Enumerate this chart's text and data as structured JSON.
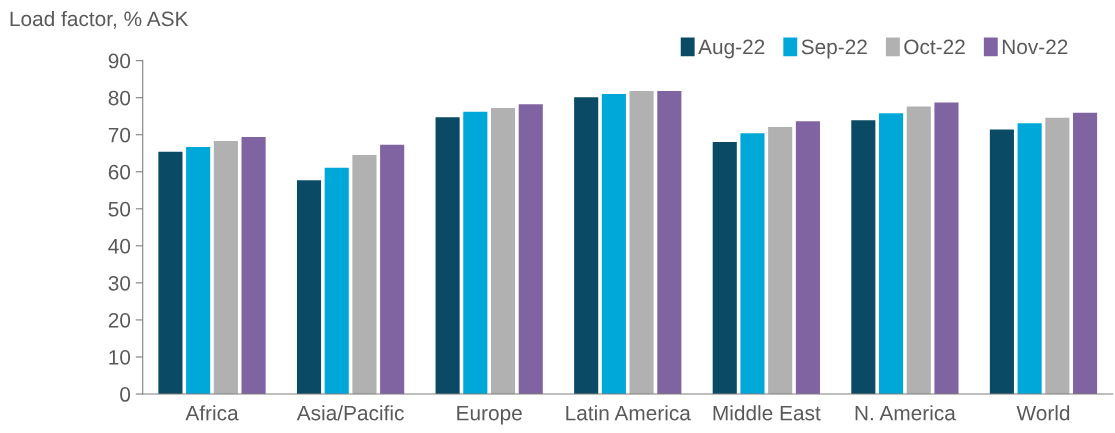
{
  "chart_data": {
    "type": "bar",
    "ylabel": "Load factor, % ASK",
    "categories": [
      "Africa",
      "Asia/Pacific",
      "Europe",
      "Latin America",
      "Middle East",
      "N. America",
      "World"
    ],
    "series": [
      {
        "name": "Aug-22",
        "color": "#0a4a64",
        "values": [
          65.4,
          57.7,
          74.7,
          80.1,
          68.0,
          73.9,
          71.4
        ]
      },
      {
        "name": "Sep-22",
        "color": "#00a7d9",
        "values": [
          66.7,
          61.1,
          76.2,
          81.0,
          70.4,
          75.8,
          73.1
        ]
      },
      {
        "name": "Oct-22",
        "color": "#b1b1b1",
        "values": [
          68.3,
          64.5,
          77.2,
          81.8,
          72.1,
          77.6,
          74.6
        ]
      },
      {
        "name": "Nov-22",
        "color": "#8064a2",
        "values": [
          69.4,
          67.3,
          78.2,
          81.8,
          73.6,
          78.7,
          75.9
        ]
      }
    ],
    "ylim": [
      0,
      90
    ],
    "yticks": [
      0,
      10,
      20,
      30,
      40,
      50,
      60,
      70,
      80,
      90
    ],
    "grid": false,
    "legend": "top right"
  }
}
